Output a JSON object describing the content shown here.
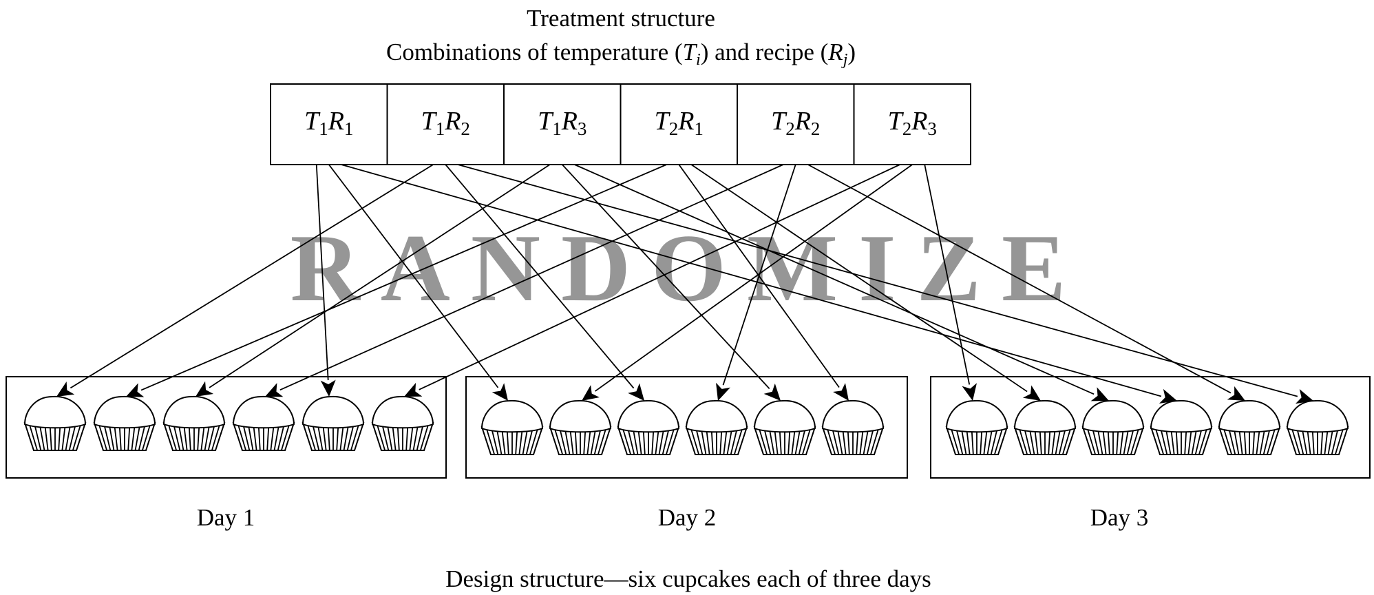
{
  "title": {
    "line1": "Treatment structure",
    "line2_prefix": "Combinations of temperature (",
    "line2_t": "T",
    "line2_t_sub": "i",
    "line2_mid": ") and recipe (",
    "line2_r": "R",
    "line2_r_sub": "j",
    "line2_suffix": ")"
  },
  "treatments": [
    {
      "t": "T",
      "t_sub": "1",
      "r": "R",
      "r_sub": "1"
    },
    {
      "t": "T",
      "t_sub": "1",
      "r": "R",
      "r_sub": "2"
    },
    {
      "t": "T",
      "t_sub": "1",
      "r": "R",
      "r_sub": "3"
    },
    {
      "t": "T",
      "t_sub": "2",
      "r": "R",
      "r_sub": "1"
    },
    {
      "t": "T",
      "t_sub": "2",
      "r": "R",
      "r_sub": "2"
    },
    {
      "t": "T",
      "t_sub": "2",
      "r": "R",
      "r_sub": "3"
    }
  ],
  "watermark": "RANDOMIZE",
  "days": [
    "Day 1",
    "Day 2",
    "Day 3"
  ],
  "cupcakes_per_day": 6,
  "caption": "Design structure—six cupcakes each of three days",
  "assignments": [
    {
      "treatment": 0,
      "day": 0,
      "cupcake": 4
    },
    {
      "treatment": 0,
      "day": 1,
      "cupcake": 0
    },
    {
      "treatment": 0,
      "day": 2,
      "cupcake": 3
    },
    {
      "treatment": 1,
      "day": 0,
      "cupcake": 0
    },
    {
      "treatment": 1,
      "day": 1,
      "cupcake": 2
    },
    {
      "treatment": 1,
      "day": 2,
      "cupcake": 5
    },
    {
      "treatment": 2,
      "day": 0,
      "cupcake": 2
    },
    {
      "treatment": 2,
      "day": 1,
      "cupcake": 4
    },
    {
      "treatment": 2,
      "day": 2,
      "cupcake": 2
    },
    {
      "treatment": 3,
      "day": 0,
      "cupcake": 1
    },
    {
      "treatment": 3,
      "day": 1,
      "cupcake": 5
    },
    {
      "treatment": 3,
      "day": 2,
      "cupcake": 1
    },
    {
      "treatment": 4,
      "day": 0,
      "cupcake": 3
    },
    {
      "treatment": 4,
      "day": 1,
      "cupcake": 3
    },
    {
      "treatment": 4,
      "day": 2,
      "cupcake": 4
    },
    {
      "treatment": 5,
      "day": 0,
      "cupcake": 5
    },
    {
      "treatment": 5,
      "day": 1,
      "cupcake": 1
    },
    {
      "treatment": 5,
      "day": 2,
      "cupcake": 0
    }
  ],
  "colors": {
    "line": "#000000",
    "watermark": "#969696",
    "background": "#ffffff"
  }
}
